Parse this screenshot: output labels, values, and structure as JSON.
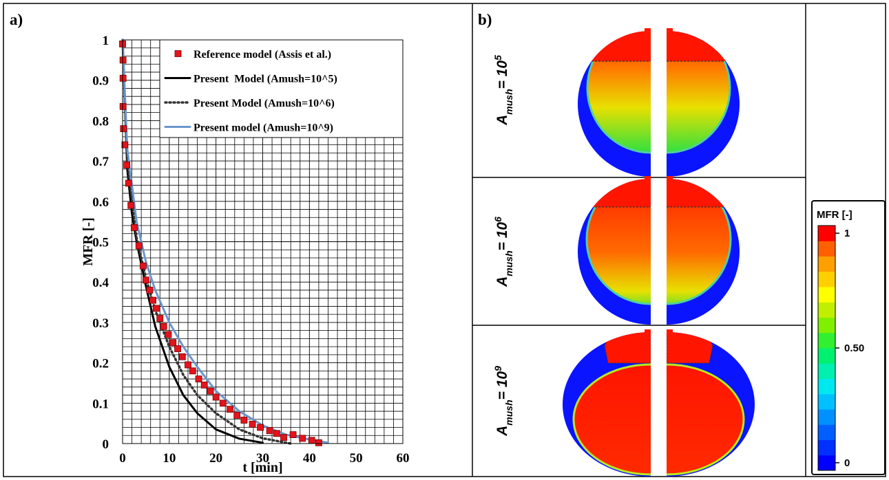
{
  "figure": {
    "panel_a_label": "a)",
    "panel_b_label": "b)"
  },
  "chart_data": {
    "type": "line",
    "xlabel": "t [min]",
    "ylabel": "MFR [-]",
    "xlim": [
      0,
      60
    ],
    "ylim": [
      0,
      1
    ],
    "xticks": [
      0,
      10,
      20,
      30,
      40,
      50,
      60
    ],
    "yticks": [
      0,
      0.1,
      0.2,
      0.3,
      0.4,
      0.5,
      0.6,
      0.7,
      0.8,
      0.9,
      1
    ],
    "grid": true,
    "legend": "upper right",
    "series": [
      {
        "name": "Reference model (Assis et al.)",
        "style": "markers",
        "color": "#e3141c",
        "x": [
          0,
          0.1,
          0.1,
          0.1,
          0.2,
          0.5,
          0.9,
          1.3,
          1.8,
          2.5,
          3.5,
          4.4,
          5,
          5.8,
          6.5,
          7.2,
          8,
          8.8,
          9.8,
          10.8,
          11.8,
          12.8,
          14,
          15,
          16.3,
          17.5,
          18.8,
          20,
          21.5,
          23,
          24.5,
          26,
          27.8,
          29.5,
          31.5,
          33,
          34.5,
          36.5,
          38.5,
          40.5,
          42
        ],
        "values": [
          0.99,
          0.95,
          0.905,
          0.835,
          0.78,
          0.74,
          0.69,
          0.645,
          0.59,
          0.535,
          0.49,
          0.44,
          0.405,
          0.38,
          0.355,
          0.335,
          0.31,
          0.29,
          0.27,
          0.25,
          0.235,
          0.215,
          0.195,
          0.18,
          0.16,
          0.145,
          0.13,
          0.115,
          0.1,
          0.085,
          0.07,
          0.058,
          0.048,
          0.04,
          0.032,
          0.025,
          0.015,
          0.022,
          0.013,
          0.008,
          0.002
        ]
      },
      {
        "name": "Present  Model (Amush=10^5)",
        "style": "solid",
        "color": "#000000",
        "x": [
          0,
          1,
          2,
          3,
          5,
          7,
          10,
          13,
          16,
          20,
          25,
          30
        ],
        "values": [
          1,
          0.68,
          0.57,
          0.5,
          0.39,
          0.29,
          0.19,
          0.12,
          0.075,
          0.035,
          0.012,
          0.002
        ]
      },
      {
        "name": "Present Model (Amush=10^6)",
        "style": "dotted",
        "color": "#333333",
        "x": [
          0,
          1,
          3,
          5,
          7,
          10,
          13,
          16,
          20,
          25,
          30,
          36
        ],
        "values": [
          1,
          0.7,
          0.51,
          0.41,
          0.33,
          0.24,
          0.17,
          0.12,
          0.075,
          0.035,
          0.013,
          0
        ]
      },
      {
        "name": "Present model (Amush=10^9)",
        "style": "solid",
        "color": "#6a96cc",
        "x": [
          0,
          1,
          3,
          5,
          7,
          10,
          13,
          16,
          20,
          25,
          30,
          35,
          40,
          44
        ],
        "values": [
          1,
          0.73,
          0.55,
          0.45,
          0.38,
          0.3,
          0.24,
          0.19,
          0.13,
          0.08,
          0.045,
          0.022,
          0.01,
          0.002
        ]
      }
    ]
  },
  "panel_b": {
    "rows": [
      {
        "base": "A",
        "sub": "mush",
        "mid": "= 10",
        "sup": "5"
      },
      {
        "base": "A",
        "sub": "mush",
        "mid": "= 10",
        "sup": "6"
      },
      {
        "base": "A",
        "sub": "mush",
        "mid": "= 10",
        "sup": "9"
      }
    ],
    "colorbar": {
      "title": "MFR [-]",
      "lim": [
        0,
        1
      ],
      "ticks": [
        {
          "value": 1,
          "label": "1"
        },
        {
          "value": 0.5,
          "label": "0.50"
        },
        {
          "value": 0,
          "label": "0"
        }
      ],
      "colors": [
        "#0000ff",
        "#0030ff",
        "#0060ff",
        "#0090ff",
        "#00c0ff",
        "#00e8f0",
        "#00f0b0",
        "#00f070",
        "#30f030",
        "#80f000",
        "#c0f000",
        "#ffff00",
        "#ffd000",
        "#ffa000",
        "#ff6000",
        "#ff0000"
      ]
    }
  }
}
